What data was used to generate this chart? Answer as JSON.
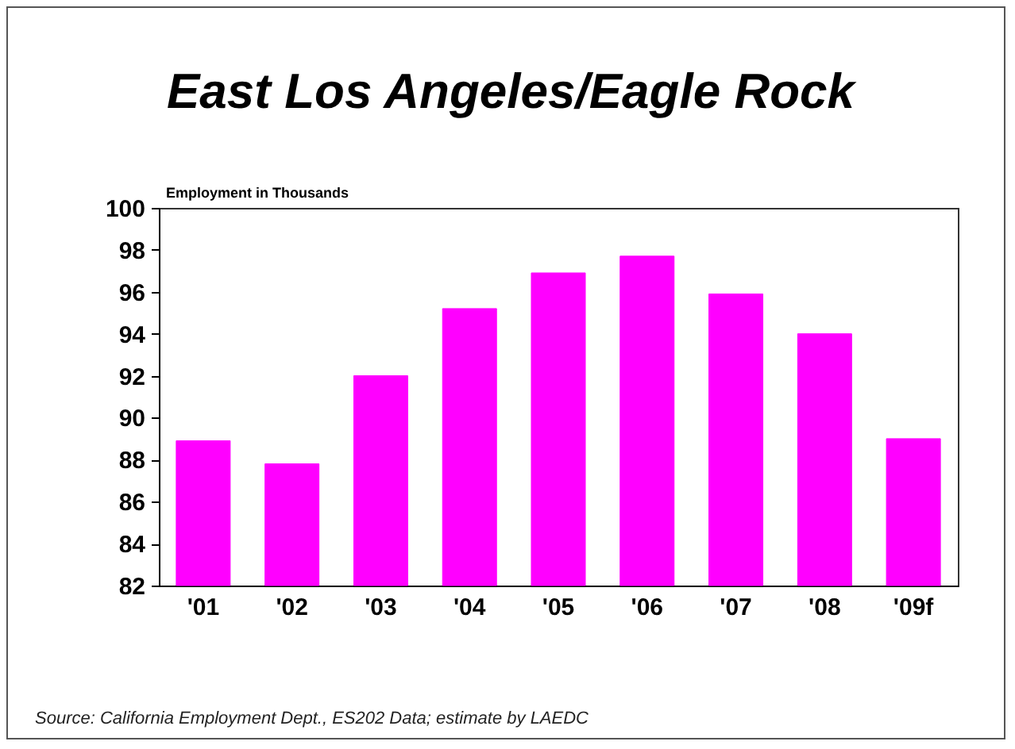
{
  "chart_data": {
    "type": "bar",
    "title": "East Los Angeles/Eagle Rock",
    "ylabel": "Employment in Thousands",
    "categories": [
      "'01",
      "'02",
      "'03",
      "'04",
      "'05",
      "'06",
      "'07",
      "'08",
      "'09f"
    ],
    "values": [
      88.9,
      87.8,
      92.0,
      95.2,
      96.9,
      97.7,
      95.9,
      94.0,
      89.0
    ],
    "color": "#ff00ff",
    "ylim": [
      82,
      100
    ],
    "yticks": [
      82,
      84,
      86,
      88,
      90,
      92,
      94,
      96,
      98,
      100
    ],
    "grid": false,
    "annotations": [
      "Source:  California Employment Dept., ES202 Data; estimate by LAEDC"
    ]
  }
}
